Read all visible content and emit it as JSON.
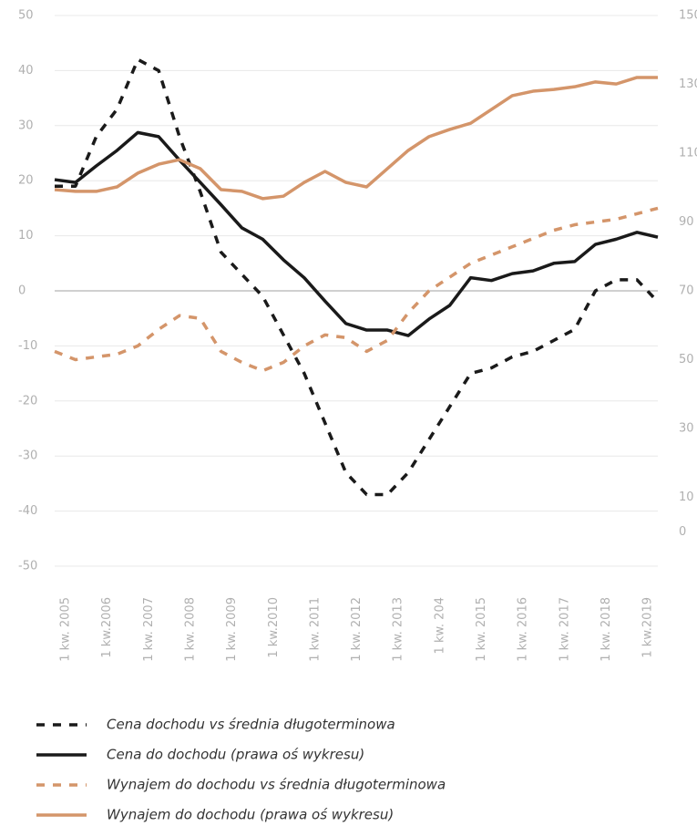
{
  "chart_data": {
    "type": "line",
    "categories": [
      "1 kw. 2005",
      null,
      "1 kw.2006",
      null,
      "1 kw. 2007",
      null,
      "1 kw. 2008",
      null,
      "1 kw. 2009",
      null,
      "1 kw.2010",
      null,
      "1 kw. 2011",
      null,
      "1 kw. 2012",
      null,
      "1 kw. 2013",
      null,
      "1 kw. 204",
      null,
      "1 kw. 2015",
      null,
      "1 kw. 2016",
      null,
      "1 kw. 2017",
      null,
      "1 kw. 2018",
      null,
      "1 kw.2019",
      null
    ],
    "series": [
      {
        "name": "Cena dochodu vs średnia długoterminowa",
        "color": "#1a1a1a",
        "style": "dashed",
        "values": [
          19,
          19,
          28,
          33,
          42,
          40,
          28,
          18,
          7,
          3,
          -1,
          -8,
          -15,
          -24,
          -33,
          -37,
          -37,
          -33,
          -27,
          -21,
          -15,
          -14,
          -12,
          -11,
          -9,
          -7,
          0,
          2,
          2,
          -2
        ]
      },
      {
        "name": "Cena do dochodu (prawa oś wykresu)",
        "color": "#1a1a1a",
        "style": "solid",
        "axis": "y2",
        "values": [
          102.3,
          101.5,
          106.3,
          110.8,
          116,
          114.8,
          108,
          101.5,
          95,
          88.3,
          85,
          79,
          73.8,
          67,
          60.5,
          58.6,
          58.6,
          57,
          61.8,
          65.8,
          73.8,
          73,
          75,
          75.8,
          78,
          78.5,
          83.5,
          85,
          87,
          85.6
        ]
      },
      {
        "name": "Wynajem do dochodu vs średnia długoterminowa",
        "color": "#d4956a",
        "style": "dashed",
        "values": [
          -11,
          -12.5,
          -12,
          -11.5,
          -10,
          -7,
          -4.5,
          -5,
          -11,
          -13,
          -14.5,
          -13,
          -10,
          -8,
          -8.5,
          -11,
          -9,
          -4,
          0,
          2.5,
          5,
          6.5,
          8,
          9.5,
          11,
          12,
          12.5,
          13,
          14,
          15
        ]
      },
      {
        "name": "Wynajem do dochodu (prawa oś wykresu)",
        "color": "#d4956a",
        "style": "solid",
        "axis": "y2",
        "values": [
          99.4,
          98.9,
          98.9,
          100.2,
          104.2,
          106.8,
          108.1,
          105.5,
          99.4,
          98.9,
          96.8,
          97.5,
          101.5,
          104.7,
          101.5,
          100.2,
          105.5,
          110.8,
          114.8,
          116.9,
          118.7,
          122.7,
          126.7,
          128,
          128.5,
          129.3,
          130.7,
          130.1,
          132,
          132
        ]
      }
    ],
    "ylim": [
      -50,
      50
    ],
    "yticks": [
      50,
      40,
      30,
      20,
      10,
      0,
      -10,
      -20,
      -30,
      -40,
      -50
    ],
    "y2lim": [
      -10,
      150
    ],
    "y2ticks": [
      150,
      130,
      110,
      90,
      70,
      50,
      30,
      10,
      0
    ],
    "grid": true
  }
}
